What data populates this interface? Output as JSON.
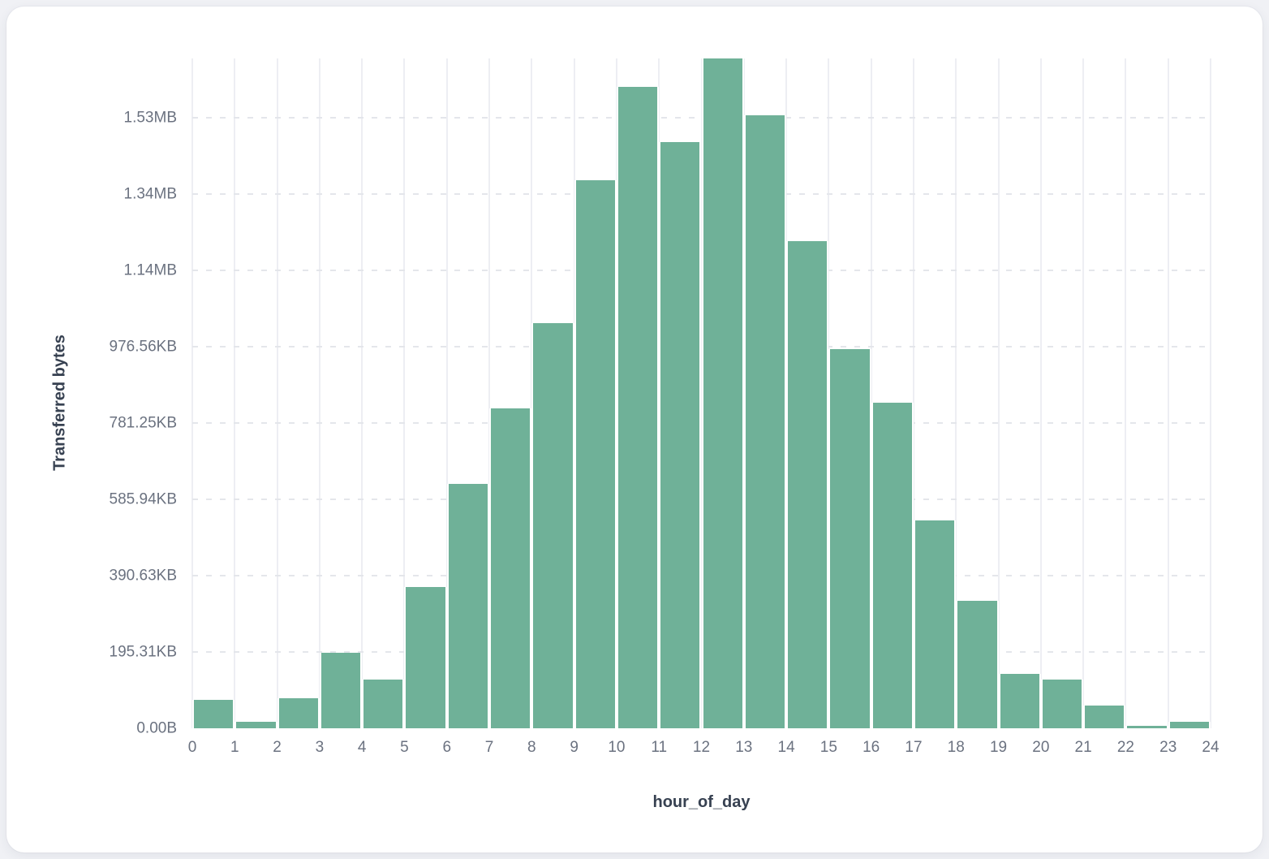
{
  "page": {
    "background": "#f0f1f5",
    "card_background": "#ffffff"
  },
  "chart_data": {
    "type": "bar",
    "subtype": "histogram",
    "title": "",
    "xlabel": "hour_of_day",
    "ylabel": "Transferred bytes",
    "categories": [
      0,
      1,
      2,
      3,
      4,
      5,
      6,
      7,
      8,
      9,
      10,
      11,
      12,
      13,
      14,
      15,
      16,
      17,
      18,
      19,
      20,
      21,
      22,
      23
    ],
    "values_bytes": [
      74500,
      17000,
      78700,
      197500,
      127700,
      370000,
      641500,
      838500,
      1062000,
      1436000,
      1681000,
      1536500,
      1756000,
      1607000,
      1277000,
      994000,
      853500,
      545000,
      334000,
      142500,
      127700,
      59500,
      7000,
      17000
    ],
    "bin_width_hours": 1,
    "x_ticks": [
      "0",
      "1",
      "2",
      "3",
      "4",
      "5",
      "6",
      "7",
      "8",
      "9",
      "10",
      "11",
      "12",
      "13",
      "14",
      "15",
      "16",
      "17",
      "18",
      "19",
      "20",
      "21",
      "22",
      "23",
      "24"
    ],
    "y_ticks": [
      {
        "label": "0.00B",
        "bytes": 0
      },
      {
        "label": "195.31KB",
        "bytes": 200000
      },
      {
        "label": "390.63KB",
        "bytes": 400000
      },
      {
        "label": "585.94KB",
        "bytes": 600000
      },
      {
        "label": "781.25KB",
        "bytes": 800000
      },
      {
        "label": "976.56KB",
        "bytes": 1000000
      },
      {
        "label": "1.14MB",
        "bytes": 1200000
      },
      {
        "label": "1.34MB",
        "bytes": 1400000
      },
      {
        "label": "1.53MB",
        "bytes": 1600000
      }
    ],
    "xlim": [
      0,
      24
    ],
    "ylim_bytes": [
      0,
      1756000
    ],
    "grid": true,
    "legend_position": "none",
    "colors": {
      "bar": "#6fb198",
      "bar_gap": "#ffffff",
      "vertical_gridline": "#edeef3",
      "horizontal_gridline_dashed": "#e4e6eb",
      "tick_label": "#6b7280",
      "axis_title": "#374151"
    }
  }
}
